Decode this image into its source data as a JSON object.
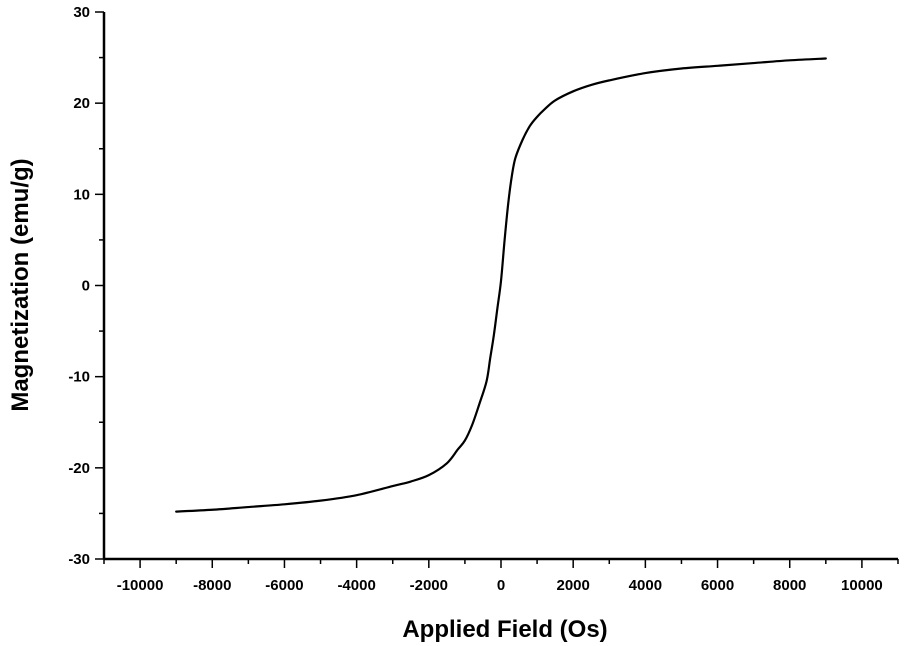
{
  "chart_data": {
    "type": "line",
    "title": "",
    "xlabel": "Applied Field (Os)",
    "ylabel": "Magnetization (emu/g)",
    "xlim": [
      -11000,
      11000
    ],
    "ylim": [
      -30,
      30
    ],
    "xticks": [
      -10000,
      -8000,
      -6000,
      -4000,
      -2000,
      0,
      2000,
      4000,
      6000,
      8000,
      10000
    ],
    "yticks": [
      -30,
      -20,
      -10,
      0,
      10,
      20,
      30
    ],
    "xtick_labels": [
      "-10000",
      "-8000",
      "-6000",
      "-4000",
      "-2000",
      "0",
      "2000",
      "4000",
      "6000",
      "8000",
      "10000"
    ],
    "ytick_labels": [
      "-30",
      "-20",
      "-10",
      "0",
      "10",
      "20",
      "30"
    ],
    "grid": false,
    "legend": "none",
    "line_color": "#000000",
    "series": [
      {
        "x": [
          -9000,
          -8000,
          -7000,
          -6000,
          -5000,
          -4000,
          -3000,
          -2500,
          -2000,
          -1500,
          -1200,
          -1000,
          -800,
          -600,
          -400,
          -300,
          -200,
          -100,
          0,
          100,
          200,
          300,
          400,
          600,
          800,
          1000,
          1200,
          1500,
          2000,
          2500,
          3000,
          4000,
          5000,
          6000,
          7000,
          8000,
          9000
        ],
        "y": [
          -24.8,
          -24.6,
          -24.3,
          -24.0,
          -23.6,
          -23.0,
          -22.0,
          -21.5,
          -20.8,
          -19.5,
          -18.0,
          -17.0,
          -15.3,
          -13.0,
          -10.5,
          -8.0,
          -5.5,
          -2.5,
          0.5,
          5.0,
          9.0,
          12.0,
          14.0,
          16.0,
          17.5,
          18.5,
          19.3,
          20.3,
          21.3,
          22.0,
          22.5,
          23.3,
          23.8,
          24.1,
          24.4,
          24.7,
          24.9
        ]
      }
    ]
  }
}
